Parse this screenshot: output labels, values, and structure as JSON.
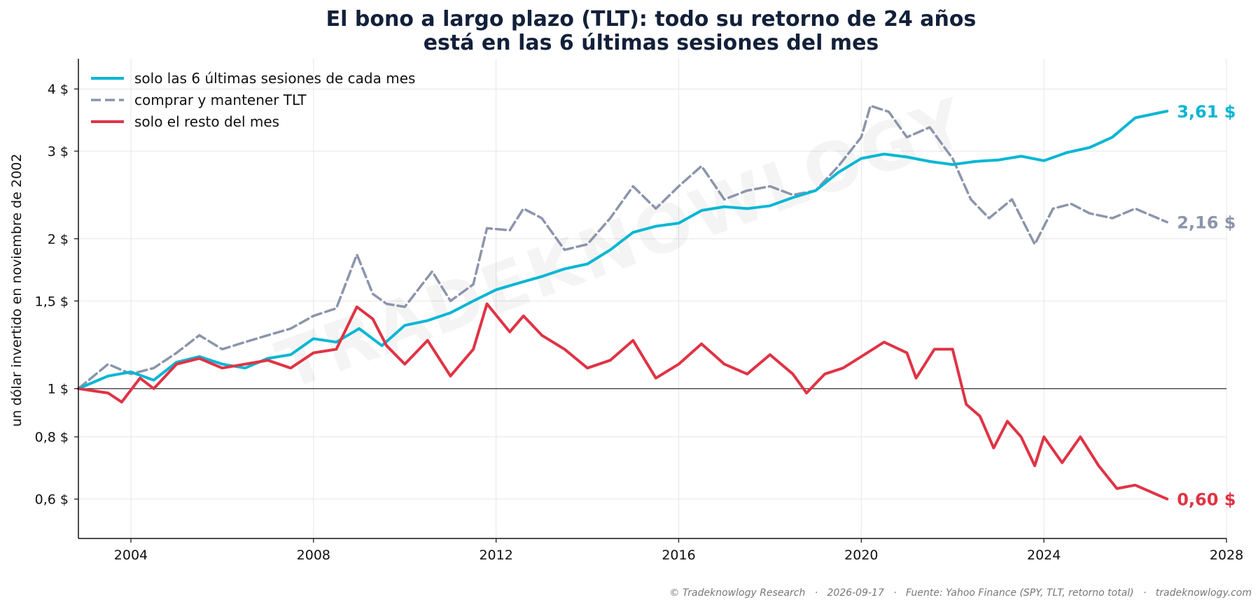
{
  "chart_data": {
    "type": "line",
    "title_line1": "El bono a largo plazo (TLT): todo su retorno de 24 años",
    "title_line2": "está en las 6 últimas sesiones del mes",
    "ylabel": "un dólar invertido en noviembre de 2002",
    "y_scale": "log",
    "ylim": [
      0.5,
      4.6
    ],
    "xlim": [
      2002.85,
      2028.0
    ],
    "x_ticks": [
      2004,
      2008,
      2012,
      2016,
      2020,
      2024,
      2028
    ],
    "y_ticks": [
      {
        "value": 0.6,
        "label": "0,6 $"
      },
      {
        "value": 0.8,
        "label": "0,8 $"
      },
      {
        "value": 1.0,
        "label": "1 $"
      },
      {
        "value": 1.5,
        "label": "1,5 $"
      },
      {
        "value": 2.0,
        "label": "2 $"
      },
      {
        "value": 3.0,
        "label": "3 $"
      },
      {
        "value": 4.0,
        "label": "4 $"
      }
    ],
    "reference_line": 1.0,
    "grid": true,
    "legend_position": "top-left",
    "series": [
      {
        "name": "solo las 6 últimas sesiones de cada mes",
        "color": "#06b6d4",
        "style": "solid",
        "end_label": "3,61 $",
        "points": [
          [
            2002.85,
            1.0
          ],
          [
            2003.5,
            1.06
          ],
          [
            2004.0,
            1.08
          ],
          [
            2004.5,
            1.04
          ],
          [
            2005.0,
            1.13
          ],
          [
            2005.5,
            1.16
          ],
          [
            2006.0,
            1.12
          ],
          [
            2006.5,
            1.1
          ],
          [
            2007.0,
            1.15
          ],
          [
            2007.5,
            1.17
          ],
          [
            2008.0,
            1.26
          ],
          [
            2008.5,
            1.24
          ],
          [
            2009.0,
            1.32
          ],
          [
            2009.5,
            1.22
          ],
          [
            2010.0,
            1.34
          ],
          [
            2010.5,
            1.37
          ],
          [
            2011.0,
            1.42
          ],
          [
            2011.5,
            1.5
          ],
          [
            2012.0,
            1.58
          ],
          [
            2012.5,
            1.63
          ],
          [
            2013.0,
            1.68
          ],
          [
            2013.5,
            1.74
          ],
          [
            2014.0,
            1.78
          ],
          [
            2014.5,
            1.9
          ],
          [
            2015.0,
            2.06
          ],
          [
            2015.5,
            2.12
          ],
          [
            2016.0,
            2.15
          ],
          [
            2016.5,
            2.28
          ],
          [
            2017.0,
            2.32
          ],
          [
            2017.5,
            2.3
          ],
          [
            2018.0,
            2.33
          ],
          [
            2018.5,
            2.42
          ],
          [
            2019.0,
            2.5
          ],
          [
            2019.5,
            2.72
          ],
          [
            2020.0,
            2.9
          ],
          [
            2020.5,
            2.96
          ],
          [
            2021.0,
            2.92
          ],
          [
            2021.5,
            2.86
          ],
          [
            2022.0,
            2.82
          ],
          [
            2022.5,
            2.86
          ],
          [
            2023.0,
            2.88
          ],
          [
            2023.5,
            2.93
          ],
          [
            2024.0,
            2.87
          ],
          [
            2024.5,
            2.98
          ],
          [
            2025.0,
            3.05
          ],
          [
            2025.5,
            3.2
          ],
          [
            2026.0,
            3.5
          ],
          [
            2026.7,
            3.61
          ]
        ]
      },
      {
        "name": "comprar y mantener TLT",
        "color": "#8b95ab",
        "style": "dashed",
        "end_label": "2,16 $",
        "points": [
          [
            2002.85,
            1.0
          ],
          [
            2003.5,
            1.12
          ],
          [
            2004.0,
            1.07
          ],
          [
            2004.5,
            1.1
          ],
          [
            2005.0,
            1.18
          ],
          [
            2005.5,
            1.28
          ],
          [
            2006.0,
            1.2
          ],
          [
            2006.5,
            1.24
          ],
          [
            2007.0,
            1.28
          ],
          [
            2007.5,
            1.32
          ],
          [
            2008.0,
            1.4
          ],
          [
            2008.5,
            1.45
          ],
          [
            2008.95,
            1.86
          ],
          [
            2009.3,
            1.55
          ],
          [
            2009.6,
            1.48
          ],
          [
            2010.0,
            1.46
          ],
          [
            2010.6,
            1.72
          ],
          [
            2011.0,
            1.5
          ],
          [
            2011.5,
            1.62
          ],
          [
            2011.8,
            2.1
          ],
          [
            2012.3,
            2.08
          ],
          [
            2012.6,
            2.3
          ],
          [
            2013.0,
            2.2
          ],
          [
            2013.5,
            1.9
          ],
          [
            2014.0,
            1.95
          ],
          [
            2014.5,
            2.2
          ],
          [
            2015.0,
            2.55
          ],
          [
            2015.5,
            2.3
          ],
          [
            2016.0,
            2.55
          ],
          [
            2016.5,
            2.8
          ],
          [
            2017.0,
            2.4
          ],
          [
            2017.5,
            2.5
          ],
          [
            2018.0,
            2.55
          ],
          [
            2018.5,
            2.45
          ],
          [
            2019.0,
            2.5
          ],
          [
            2019.5,
            2.8
          ],
          [
            2020.0,
            3.2
          ],
          [
            2020.2,
            3.7
          ],
          [
            2020.6,
            3.6
          ],
          [
            2021.0,
            3.2
          ],
          [
            2021.5,
            3.35
          ],
          [
            2022.0,
            2.9
          ],
          [
            2022.4,
            2.4
          ],
          [
            2022.8,
            2.2
          ],
          [
            2023.3,
            2.4
          ],
          [
            2023.8,
            1.95
          ],
          [
            2024.2,
            2.3
          ],
          [
            2024.6,
            2.35
          ],
          [
            2025.0,
            2.25
          ],
          [
            2025.5,
            2.2
          ],
          [
            2026.0,
            2.3
          ],
          [
            2026.7,
            2.16
          ]
        ]
      },
      {
        "name": "solo el resto del mes",
        "color": "#e03345",
        "style": "solid",
        "end_label": "0,60 $",
        "points": [
          [
            2002.85,
            1.0
          ],
          [
            2003.5,
            0.98
          ],
          [
            2003.8,
            0.94
          ],
          [
            2004.2,
            1.05
          ],
          [
            2004.5,
            1.0
          ],
          [
            2005.0,
            1.12
          ],
          [
            2005.5,
            1.15
          ],
          [
            2006.0,
            1.1
          ],
          [
            2006.5,
            1.12
          ],
          [
            2007.0,
            1.14
          ],
          [
            2007.5,
            1.1
          ],
          [
            2008.0,
            1.18
          ],
          [
            2008.5,
            1.2
          ],
          [
            2008.95,
            1.46
          ],
          [
            2009.3,
            1.38
          ],
          [
            2009.6,
            1.22
          ],
          [
            2010.0,
            1.12
          ],
          [
            2010.5,
            1.25
          ],
          [
            2011.0,
            1.06
          ],
          [
            2011.5,
            1.2
          ],
          [
            2011.8,
            1.48
          ],
          [
            2012.3,
            1.3
          ],
          [
            2012.6,
            1.4
          ],
          [
            2013.0,
            1.28
          ],
          [
            2013.5,
            1.2
          ],
          [
            2014.0,
            1.1
          ],
          [
            2014.5,
            1.14
          ],
          [
            2015.0,
            1.25
          ],
          [
            2015.5,
            1.05
          ],
          [
            2016.0,
            1.12
          ],
          [
            2016.5,
            1.23
          ],
          [
            2017.0,
            1.12
          ],
          [
            2017.5,
            1.07
          ],
          [
            2018.0,
            1.17
          ],
          [
            2018.5,
            1.07
          ],
          [
            2018.8,
            0.98
          ],
          [
            2019.2,
            1.07
          ],
          [
            2019.6,
            1.1
          ],
          [
            2020.0,
            1.16
          ],
          [
            2020.5,
            1.24
          ],
          [
            2021.0,
            1.18
          ],
          [
            2021.2,
            1.05
          ],
          [
            2021.6,
            1.2
          ],
          [
            2022.0,
            1.2
          ],
          [
            2022.3,
            0.93
          ],
          [
            2022.6,
            0.88
          ],
          [
            2022.9,
            0.76
          ],
          [
            2023.2,
            0.86
          ],
          [
            2023.5,
            0.8
          ],
          [
            2023.8,
            0.7
          ],
          [
            2024.0,
            0.8
          ],
          [
            2024.4,
            0.71
          ],
          [
            2024.8,
            0.8
          ],
          [
            2025.2,
            0.7
          ],
          [
            2025.6,
            0.63
          ],
          [
            2026.0,
            0.64
          ],
          [
            2026.7,
            0.6
          ]
        ]
      }
    ]
  },
  "watermark": "TRADEKNOWLOGY",
  "footer": "© Tradeknowlogy Research   ·   2026-09-17   ·   Fuente: Yahoo Finance (SPY, TLT, retorno total)   ·   tradeknowlogy.com"
}
